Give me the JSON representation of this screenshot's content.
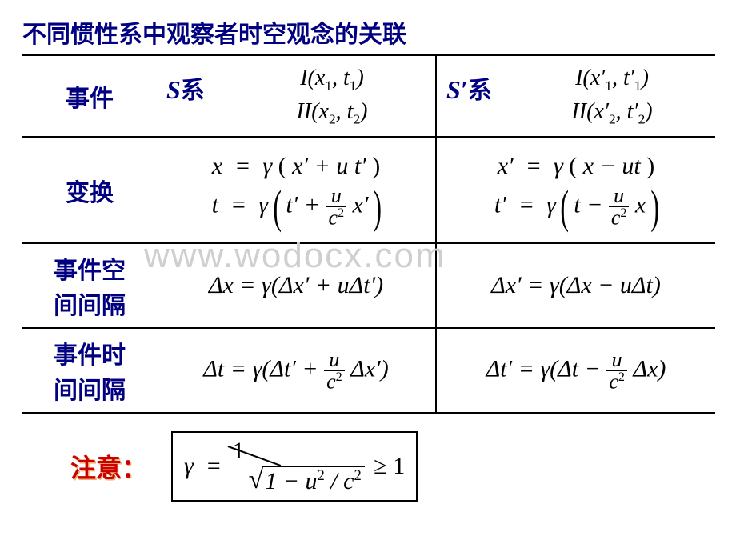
{
  "title": "不同惯性系中观察者时空观念的关联",
  "watermark": "www.wodocx.com",
  "columns": {
    "event_label": "事件",
    "s_frame": "S",
    "s_frame_cn": "系",
    "sp_frame": "S′",
    "sp_frame_cn": "系"
  },
  "events": {
    "s1": "I(x₁, t₁)",
    "s2": "II(x₂, t₂)",
    "sp1": "I(x′₁, t′₁)",
    "sp2": "II(x′₂, t′₂)"
  },
  "row_labels": {
    "transform": "变换",
    "space_interval_l1": "事件空",
    "space_interval_l2": "间间隔",
    "time_interval_l1": "事件时",
    "time_interval_l2": "间间隔"
  },
  "transform": {
    "s_x": "x = γ ( x′ + u t′ )",
    "s_t_pre": "t = γ",
    "s_t_in1": "t′ + ",
    "s_t_frac_num": "u",
    "s_t_frac_den": "c²",
    "s_t_in2": " x′",
    "sp_x": "x′ = γ ( x − ut )",
    "sp_t_pre": "t′ = γ",
    "sp_t_in1": "t − ",
    "sp_t_frac_num": "u",
    "sp_t_frac_den": "c²",
    "sp_t_in2": " x"
  },
  "space": {
    "s": "Δx = γ(Δx′ + uΔt′)",
    "sp": "Δx′ = γ(Δx − uΔt)"
  },
  "time": {
    "s_pre": "Δt = γ(Δt′ + ",
    "s_frac_num": "u",
    "s_frac_den": "c²",
    "s_post": " Δx′)",
    "sp_pre": "Δt′ = γ(Δt − ",
    "sp_frac_num": "u",
    "sp_frac_den": "c²",
    "sp_post": " Δx)"
  },
  "footer": {
    "note": "注意：",
    "gamma_pre": "γ = ",
    "gamma_num": "1",
    "gamma_sqrt_body": "1 − u² / c²",
    "gamma_post": " ≥ 1"
  },
  "colors": {
    "title": "#000080",
    "label": "#000080",
    "note": "#cc0000",
    "watermark": "#cfcfcf",
    "border": "#000000",
    "bg": "#ffffff"
  },
  "fonts": {
    "title_size": 30,
    "label_size": 30,
    "math_size": 30,
    "note_size": 32,
    "watermark_size": 44
  }
}
